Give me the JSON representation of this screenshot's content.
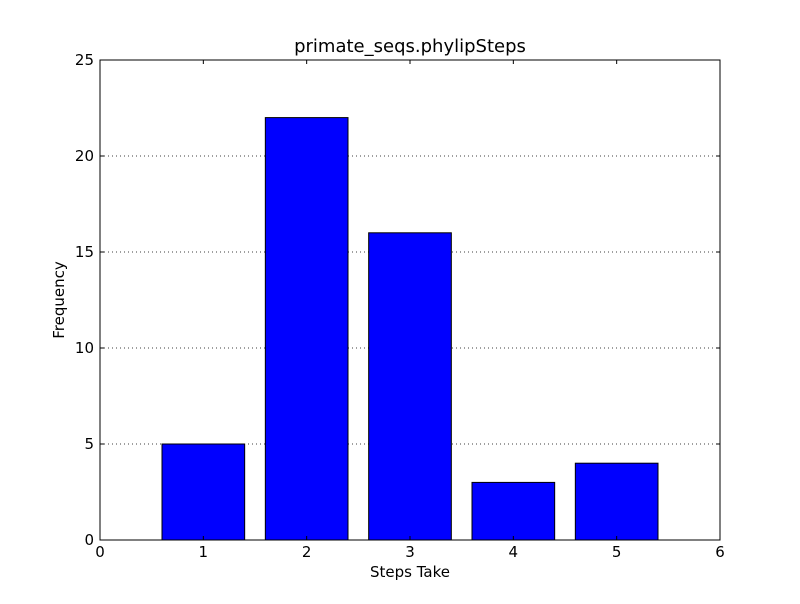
{
  "chart_data": {
    "type": "bar",
    "title": "primate_seqs.phylipSteps",
    "xlabel": "Steps Take",
    "ylabel": "Frequency",
    "x": [
      1,
      2,
      3,
      4,
      5
    ],
    "values": [
      5,
      22,
      16,
      3,
      4
    ],
    "bar_width": 0.8,
    "xlim": [
      0,
      6
    ],
    "ylim": [
      0,
      25
    ],
    "xticks": [
      0,
      1,
      2,
      3,
      4,
      5,
      6
    ],
    "yticks": [
      0,
      5,
      10,
      15,
      20,
      25
    ],
    "grid": "horizontal-dotted",
    "bar_color": "#0000ff",
    "edge_color": "#000000"
  }
}
